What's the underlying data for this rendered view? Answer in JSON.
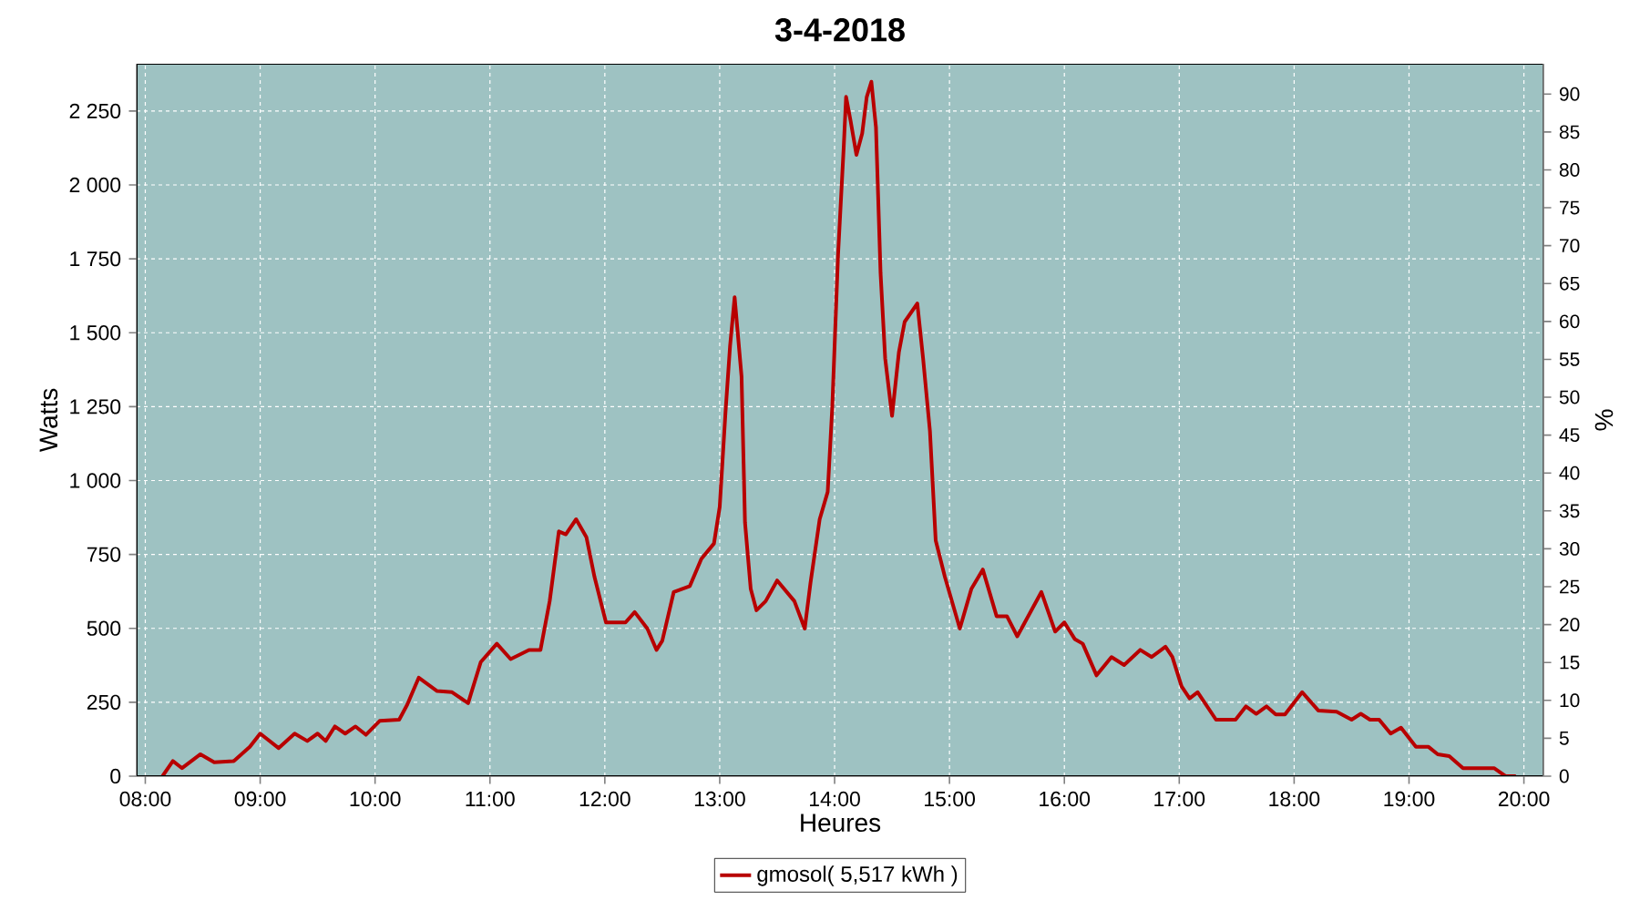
{
  "chart_data": {
    "type": "line",
    "title": "3-4-2018",
    "xlabel": "Heures",
    "ylabel": "Watts",
    "y2label": "%",
    "x": [
      8.15,
      8.24,
      8.32,
      8.48,
      8.6,
      8.77,
      8.91,
      9.0,
      9.16,
      9.3,
      9.41,
      9.5,
      9.57,
      9.65,
      9.74,
      9.83,
      9.92,
      10.04,
      10.21,
      10.28,
      10.38,
      10.54,
      10.67,
      10.81,
      10.92,
      11.06,
      11.18,
      11.34,
      11.44,
      11.52,
      11.6,
      11.66,
      11.75,
      11.84,
      11.91,
      12.01,
      12.18,
      12.26,
      12.37,
      12.45,
      12.5,
      12.6,
      12.74,
      12.84,
      12.95,
      13.0,
      13.05,
      13.09,
      13.13,
      13.19,
      13.22,
      13.27,
      13.32,
      13.4,
      13.5,
      13.65,
      13.74,
      13.79,
      13.87,
      13.94,
      13.98,
      14.03,
      14.08,
      14.1,
      14.14,
      14.19,
      14.24,
      14.28,
      14.32,
      14.36,
      14.4,
      14.44,
      14.5,
      14.56,
      14.61,
      14.72,
      14.77,
      14.83,
      14.88,
      14.96,
      15.09,
      15.19,
      15.29,
      15.41,
      15.5,
      15.59,
      15.8,
      15.92,
      16.0,
      16.09,
      16.16,
      16.28,
      16.41,
      16.52,
      16.66,
      16.76,
      16.88,
      16.94,
      17.02,
      17.09,
      17.16,
      17.32,
      17.49,
      17.58,
      17.67,
      17.76,
      17.84,
      17.92,
      18.07,
      18.21,
      18.37,
      18.5,
      18.58,
      18.66,
      18.74,
      18.84,
      18.93,
      19.06,
      19.17,
      19.25,
      19.35,
      19.47,
      19.74,
      19.84,
      19.93
    ],
    "series": [
      {
        "name": "gmosol( 5,517 kWh )",
        "color": "#b80000",
        "values": [
          0,
          51,
          27,
          74,
          47,
          51,
          99,
          144,
          95,
          144,
          119,
          144,
          119,
          168,
          144,
          168,
          140,
          187,
          191,
          242,
          333,
          288,
          284,
          247,
          386,
          448,
          396,
          427,
          427,
          592,
          828,
          818,
          869,
          808,
          674,
          520,
          520,
          555,
          499,
          427,
          458,
          623,
          643,
          735,
          787,
          911,
          1229,
          1455,
          1620,
          1352,
          859,
          633,
          561,
          592,
          662,
          592,
          499,
          653,
          869,
          962,
          1250,
          1763,
          2133,
          2298,
          2215,
          2102,
          2174,
          2298,
          2349,
          2195,
          1702,
          1414,
          1219,
          1435,
          1537,
          1599,
          1414,
          1167,
          797,
          674,
          499,
          633,
          699,
          541,
          541,
          473,
          623,
          489,
          520,
          464,
          448,
          341,
          403,
          376,
          427,
          403,
          438,
          403,
          304,
          263,
          284,
          191,
          191,
          236,
          211,
          236,
          209,
          209,
          284,
          222,
          218,
          191,
          211,
          191,
          191,
          144,
          164,
          99,
          99,
          74,
          68,
          27,
          27,
          0,
          0
        ]
      }
    ],
    "xlim": [
      7.925,
      20.17
    ],
    "xticks": [
      {
        "value": 8,
        "label": "08:00"
      },
      {
        "value": 9,
        "label": "09:00"
      },
      {
        "value": 10,
        "label": "10:00"
      },
      {
        "value": 11,
        "label": "11:00"
      },
      {
        "value": 12,
        "label": "12:00"
      },
      {
        "value": 13,
        "label": "13:00"
      },
      {
        "value": 14,
        "label": "14:00"
      },
      {
        "value": 15,
        "label": "15:00"
      },
      {
        "value": 16,
        "label": "16:00"
      },
      {
        "value": 17,
        "label": "17:00"
      },
      {
        "value": 18,
        "label": "18:00"
      },
      {
        "value": 19,
        "label": "19:00"
      },
      {
        "value": 20,
        "label": "20:00"
      }
    ],
    "ylim": [
      0,
      2410
    ],
    "yticks": [
      0,
      250,
      500,
      750,
      {
        "value": 1000,
        "label": "1 000"
      },
      {
        "value": 1250,
        "label": "1 250"
      },
      {
        "value": 1500,
        "label": "1 500"
      },
      {
        "value": 1750,
        "label": "1 750"
      },
      {
        "value": 2000,
        "label": "2 000"
      },
      {
        "value": 2250,
        "label": "2 250"
      }
    ],
    "y2lim": [
      0,
      94
    ],
    "y2ticks": [
      0,
      5,
      10,
      15,
      20,
      25,
      30,
      35,
      40,
      45,
      50,
      55,
      60,
      65,
      70,
      75,
      80,
      85,
      90
    ],
    "grid": true,
    "legend": "bottom"
  }
}
